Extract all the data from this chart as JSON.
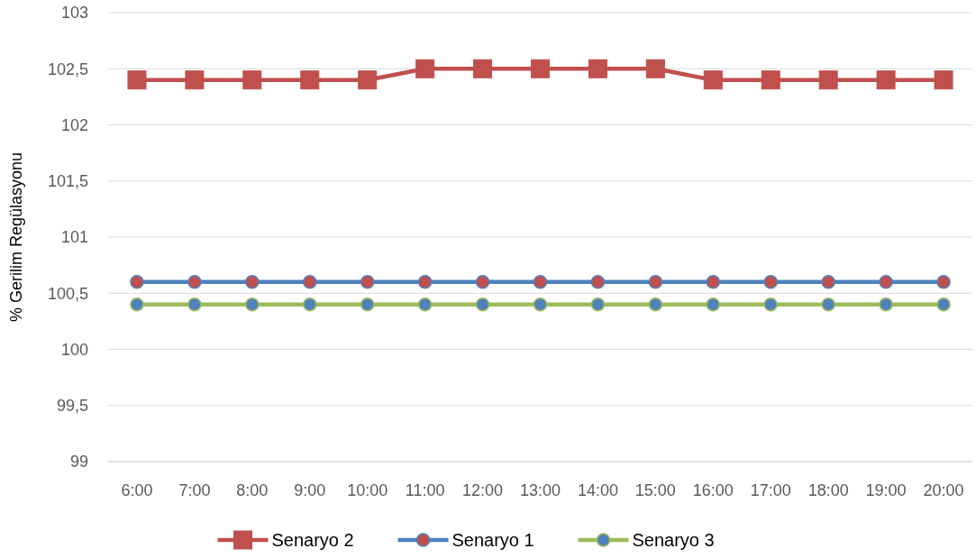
{
  "chart_data": {
    "type": "line",
    "ylabel": "% Gerilim Regülasyonu",
    "categories": [
      "6:00",
      "7:00",
      "8:00",
      "9:00",
      "10:00",
      "11:00",
      "12:00",
      "13:00",
      "14:00",
      "15:00",
      "16:00",
      "17:00",
      "18:00",
      "19:00",
      "20:00"
    ],
    "series": [
      {
        "name": "Senaryo 2",
        "color": "#c0504d",
        "marker": "square",
        "values": [
          102.4,
          102.4,
          102.4,
          102.4,
          102.4,
          102.5,
          102.5,
          102.5,
          102.5,
          102.5,
          102.4,
          102.4,
          102.4,
          102.4,
          102.4
        ]
      },
      {
        "name": "Senaryo 1",
        "color": "#4f81bd",
        "marker": "circle",
        "colors": [
          "#c0504d",
          "#c0504d",
          "#c0504d",
          "#c0504d",
          "#c0504d",
          "#c0504d",
          "#c0504d",
          "#c0504d",
          "#c0504d",
          "#c0504d",
          "#c0504d",
          "#c0504d",
          "#c0504d",
          "#c0504d",
          "#c0504d"
        ],
        "values": [
          100.6,
          100.6,
          100.6,
          100.6,
          100.6,
          100.6,
          100.6,
          100.6,
          100.6,
          100.6,
          100.6,
          100.6,
          100.6,
          100.6,
          100.6
        ]
      },
      {
        "name": "Senaryo 3",
        "color": "#9bbb59",
        "marker": "circle",
        "colors": [
          "#4f81bd",
          "#4f81bd",
          "#4f81bd",
          "#4f81bd",
          "#4f81bd",
          "#4f81bd",
          "#4f81bd",
          "#4f81bd",
          "#4f81bd",
          "#4f81bd",
          "#4f81bd",
          "#4f81bd",
          "#4f81bd",
          "#4f81bd",
          "#4f81bd"
        ],
        "values": [
          100.4,
          100.4,
          100.4,
          100.4,
          100.4,
          100.4,
          100.4,
          100.4,
          100.4,
          100.4,
          100.4,
          100.4,
          100.4,
          100.4,
          100.4
        ]
      }
    ],
    "ylim": [
      99,
      103
    ],
    "yticks": [
      99,
      {
        "value": 99.5,
        "label": "99,5"
      },
      100,
      {
        "value": 100.5,
        "label": "100,5"
      },
      101,
      {
        "value": 101.5,
        "label": "101,5"
      },
      102,
      {
        "value": 102.5,
        "label": "102,5"
      },
      103
    ],
    "grid": "y",
    "legend": "bottom"
  }
}
